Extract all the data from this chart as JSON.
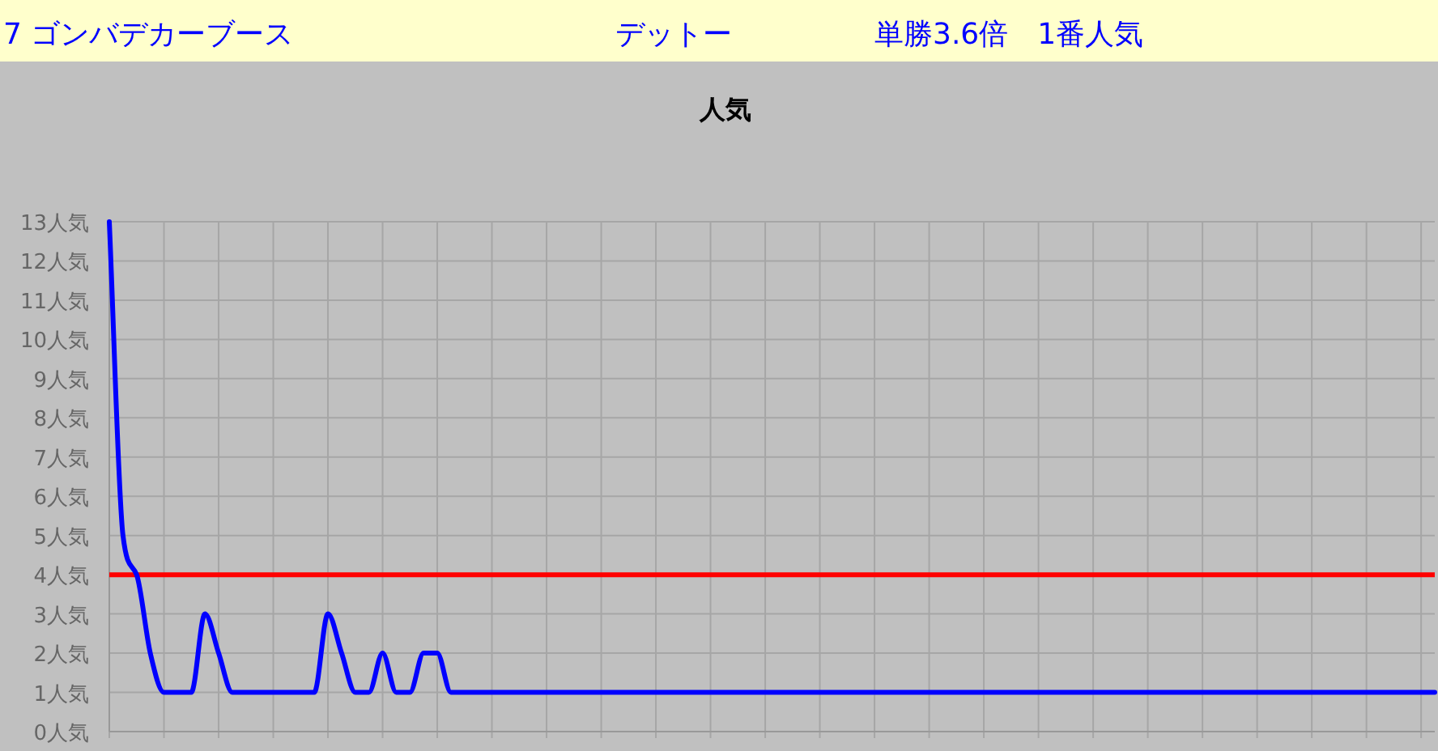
{
  "chart_data": {
    "type": "line",
    "title": "人気",
    "annotations": [
      "7 ゴンバデカーブース",
      "デットー",
      "単勝3.6倍　1番人気"
    ],
    "categories": [
      null,
      null,
      null,
      null,
      null,
      null,
      null,
      null,
      null,
      null,
      null,
      null,
      null,
      null,
      null,
      null,
      null,
      null,
      null,
      null,
      null,
      null,
      null,
      null,
      null,
      null,
      null,
      null,
      null,
      null,
      null,
      null,
      null,
      null,
      null,
      null,
      null,
      null,
      null,
      null,
      null,
      null,
      null,
      null,
      null,
      null,
      null,
      null,
      null,
      null,
      null,
      null,
      null,
      null,
      null,
      null,
      null,
      null,
      null,
      null,
      null,
      null,
      null,
      null,
      null,
      null,
      null,
      null,
      null,
      null,
      null,
      null,
      null,
      null,
      null,
      null,
      null,
      null,
      null,
      null,
      null,
      null,
      null,
      null,
      null,
      null,
      null,
      null,
      null,
      null,
      null,
      null,
      null,
      null,
      null,
      null,
      null,
      null
    ],
    "series": [
      {
        "color": "#0000ff",
        "values": [
          13,
          5,
          4,
          2,
          1,
          1,
          1,
          3,
          2,
          1,
          1,
          1,
          1,
          1,
          1,
          1,
          3,
          2,
          1,
          1,
          2,
          1,
          1,
          2,
          2,
          1,
          1,
          1,
          1,
          1,
          1,
          1,
          1,
          1,
          1,
          1,
          1,
          1,
          1,
          1,
          1,
          1,
          1,
          1,
          1,
          1,
          1,
          1,
          1,
          1,
          1,
          1,
          1,
          1,
          1,
          1,
          1,
          1,
          1,
          1,
          1,
          1,
          1,
          1,
          1,
          1,
          1,
          1,
          1,
          1,
          1,
          1,
          1,
          1,
          1,
          1,
          1,
          1,
          1,
          1,
          1,
          1,
          1,
          1,
          1,
          1,
          1,
          1,
          1,
          1,
          1,
          1,
          1,
          1,
          1,
          1,
          1,
          1
        ]
      }
    ],
    "ylim": [
      0,
      13
    ],
    "yticks": [
      {
        "value": 0,
        "label": "0人気"
      },
      {
        "value": 1,
        "label": "1人気"
      },
      {
        "value": 2,
        "label": "2人気"
      },
      {
        "value": 3,
        "label": "3人気"
      },
      {
        "value": 4,
        "label": "4人気"
      },
      {
        "value": 5,
        "label": "5人気"
      },
      {
        "value": 6,
        "label": "6人気"
      },
      {
        "value": 7,
        "label": "7人気"
      },
      {
        "value": 8,
        "label": "8人気"
      },
      {
        "value": 9,
        "label": "9人気"
      },
      {
        "value": 10,
        "label": "10人気"
      },
      {
        "value": 11,
        "label": "11人気"
      },
      {
        "value": 12,
        "label": "12人気"
      },
      {
        "value": 13,
        "label": "13人気"
      }
    ],
    "grid": true,
    "ref_lines": [
      {
        "axis": "y",
        "value": 4,
        "color": "#ff0000"
      }
    ]
  }
}
